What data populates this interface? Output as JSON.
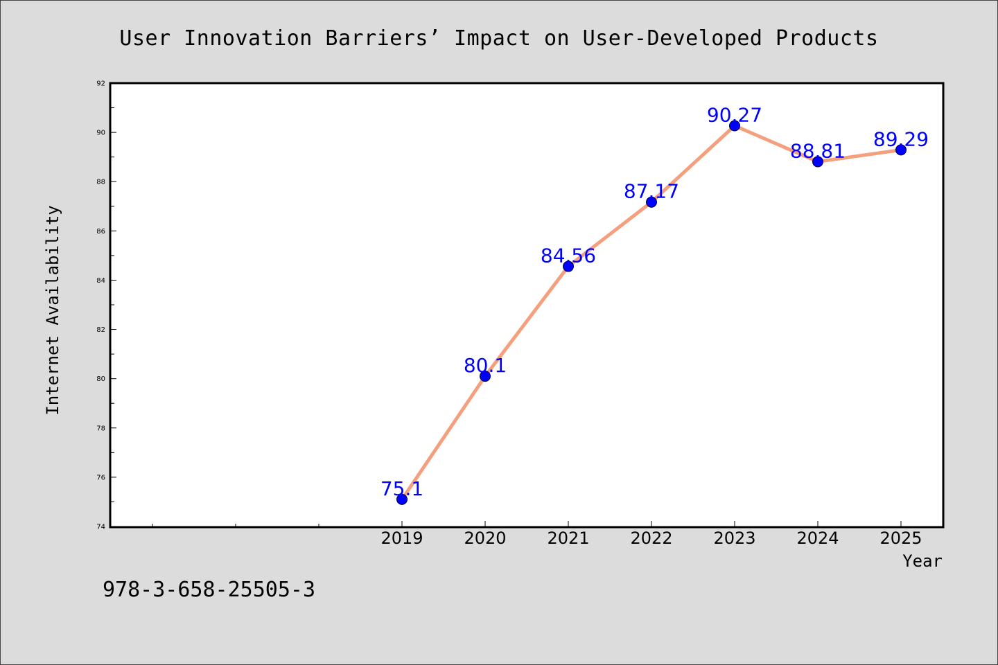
{
  "chart_data": {
    "type": "line",
    "title": "User Innovation Barriers’ Impact on User-Developed Products",
    "xlabel": "Year",
    "ylabel": "Internet Availability",
    "x": [
      2019,
      2020,
      2021,
      2022,
      2023,
      2024,
      2025
    ],
    "x_tick_labels": [
      "2019",
      "2020",
      "2021",
      "2022",
      "2023",
      "2024",
      "2025"
    ],
    "x_range": [
      2015.5,
      2025.5
    ],
    "series": [
      {
        "values": [
          75.1,
          80.1,
          84.56,
          87.17,
          90.27,
          88.81,
          89.29
        ],
        "data_labels": [
          "75.1",
          "80.1",
          "84.56",
          "87.17",
          "90.27",
          "88.81",
          "89.29"
        ]
      }
    ],
    "ylim": [
      74,
      92
    ],
    "y_ticks": [
      74,
      76,
      78,
      80,
      82,
      84,
      86,
      88,
      90,
      92
    ],
    "grid": false,
    "line_color": "#f4a07f",
    "marker_color": "#0000ff",
    "label_color": "#0000ff",
    "annotation": "978-3-658-25505-3"
  }
}
